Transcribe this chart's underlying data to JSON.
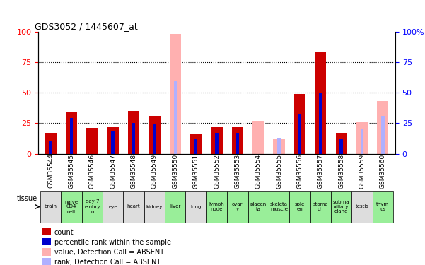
{
  "title": "GDS3052 / 1445607_at",
  "samples": [
    "GSM35544",
    "GSM35545",
    "GSM35546",
    "GSM35547",
    "GSM35548",
    "GSM35549",
    "GSM35550",
    "GSM35551",
    "GSM35552",
    "GSM35553",
    "GSM35554",
    "GSM35555",
    "GSM35556",
    "GSM35557",
    "GSM35558",
    "GSM35559",
    "GSM35560"
  ],
  "tissues": [
    "brain",
    "naive\nCD4\ncell",
    "day 7\nembry\no",
    "eye",
    "heart",
    "kidney",
    "liver",
    "lung",
    "lymph\nnode",
    "ovar\ny",
    "placen\nta",
    "skeleta\nmuscle",
    "sple\nen",
    "stoma\nch",
    "subma\nxillary\ngland",
    "testis",
    "thym\nus"
  ],
  "tissue_groups": [
    0,
    1,
    1,
    0,
    0,
    0,
    1,
    0,
    1,
    1,
    1,
    1,
    1,
    1,
    1,
    0,
    1
  ],
  "count_values": [
    17,
    34,
    21,
    22,
    35,
    31,
    0,
    16,
    22,
    22,
    0,
    0,
    49,
    83,
    17,
    0,
    0
  ],
  "percentile_values": [
    10,
    29,
    0,
    19,
    25,
    24,
    0,
    12,
    17,
    17,
    0,
    0,
    33,
    50,
    12,
    0,
    0
  ],
  "absent_value_values": [
    0,
    0,
    0,
    0,
    0,
    0,
    98,
    0,
    0,
    0,
    27,
    12,
    0,
    0,
    0,
    26,
    43
  ],
  "absent_rank_values": [
    0,
    0,
    0,
    0,
    0,
    0,
    60,
    0,
    0,
    0,
    0,
    13,
    0,
    0,
    0,
    20,
    31
  ],
  "count_color": "#cc0000",
  "percentile_color": "#0000cc",
  "absent_value_color": "#ffb0b0",
  "absent_rank_color": "#b0b0ff",
  "bg_color_light": "#dddddd",
  "bg_color_green": "#99ee99",
  "ylim": [
    0,
    100
  ],
  "yticks": [
    0,
    25,
    50,
    75,
    100
  ],
  "legend_items": [
    {
      "color": "#cc0000",
      "label": "count"
    },
    {
      "color": "#0000cc",
      "label": "percentile rank within the sample"
    },
    {
      "color": "#ffb0b0",
      "label": "value, Detection Call = ABSENT"
    },
    {
      "color": "#b0b0ff",
      "label": "rank, Detection Call = ABSENT"
    }
  ]
}
